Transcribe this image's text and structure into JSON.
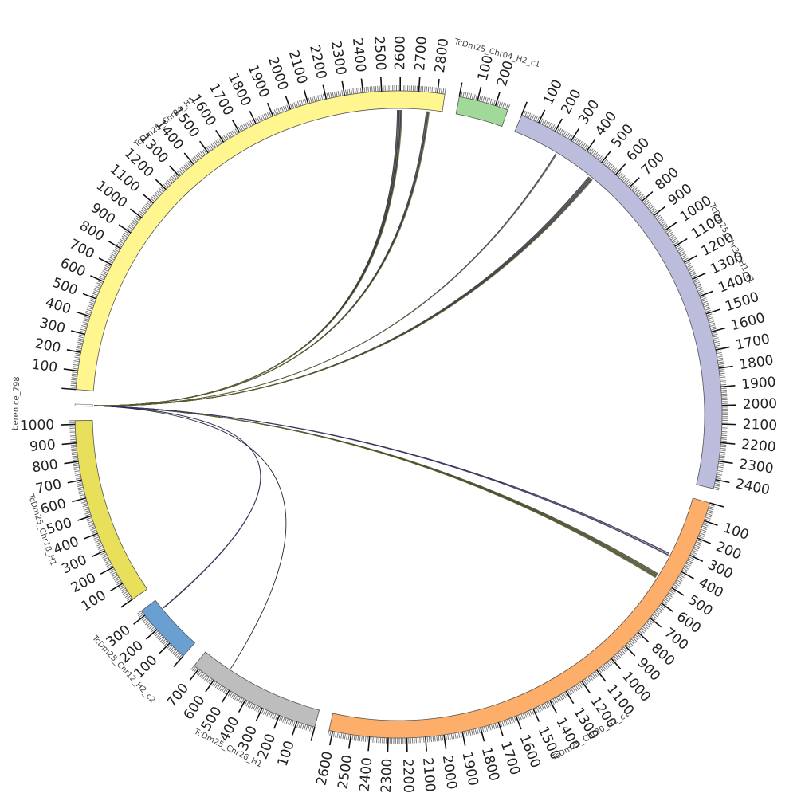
{
  "figure": {
    "type": "circos"
  },
  "sequences": [
    {
      "name": "berenice_798",
      "length": 10,
      "color": "#ffffff",
      "tick_labels": []
    },
    {
      "name": "TcDm25_Chr04_H1",
      "length": 2840,
      "color": "#fff68f",
      "tick_labels": [
        "100",
        "200",
        "300",
        "400",
        "500",
        "600",
        "700",
        "800",
        "900",
        "1000",
        "1100",
        "1200",
        "1300",
        "1400",
        "1500",
        "1600",
        "1700",
        "1800",
        "1900",
        "2000",
        "2100",
        "2200",
        "2300",
        "2400",
        "2500",
        "2600",
        "2700",
        "2800"
      ]
    },
    {
      "name": "TcDm25_Chr04_H2_c1",
      "length": 270,
      "color": "#a1d99b",
      "tick_labels": [
        "100",
        "200"
      ]
    },
    {
      "name": "TcDm25_Chr30_H1_c1",
      "length": 2450,
      "color": "#bcbddc",
      "tick_labels": [
        "100",
        "200",
        "300",
        "400",
        "500",
        "600",
        "700",
        "800",
        "900",
        "1000",
        "1100",
        "1200",
        "1300",
        "1400",
        "1500",
        "1600",
        "1700",
        "1800",
        "1900",
        "2000",
        "2100",
        "2200",
        "2300",
        "2400"
      ]
    },
    {
      "name": "TcDm25_Chr30_H2_c1",
      "length": 2620,
      "color": "#fdae6b",
      "tick_labels": [
        "100",
        "200",
        "300",
        "400",
        "500",
        "600",
        "700",
        "800",
        "900",
        "1000",
        "1100",
        "1200",
        "1300",
        "1400",
        "1500",
        "1600",
        "1700",
        "1800",
        "1900",
        "2000",
        "2100",
        "2200",
        "2300",
        "2400",
        "2500",
        "2600"
      ]
    },
    {
      "name": "TcDm25_Chr26_H1",
      "length": 730,
      "color": "#bdbdbd",
      "tick_labels": [
        "100",
        "200",
        "300",
        "400",
        "500",
        "600",
        "700"
      ]
    },
    {
      "name": "TcDm25_Chr12_H2_c2",
      "length": 330,
      "color": "#6a9fd1",
      "tick_labels": [
        "100",
        "200",
        "300"
      ]
    },
    {
      "name": "TcDm25_Chr18_H1",
      "length": 1020,
      "color": "#e8e05a",
      "tick_labels": [
        "100",
        "200",
        "300",
        "400",
        "500",
        "600",
        "700",
        "800",
        "900",
        "1000"
      ]
    }
  ],
  "links": [
    {
      "from": "berenice_798",
      "to": "TcDm25_Chr04_H1",
      "positions": [
        2590,
        2600,
        2610
      ],
      "count": 10,
      "color": "#1a1a1a"
    },
    {
      "from": "berenice_798",
      "to": "TcDm25_Chr04_H1",
      "positions": [
        2755,
        2765
      ],
      "count": 6,
      "color": "#1a1a1a"
    },
    {
      "from": "berenice_798",
      "to": "TcDm25_Chr30_H1_c1",
      "positions": [
        270
      ],
      "count": 3,
      "color": "#20205a"
    },
    {
      "from": "berenice_798",
      "to": "TcDm25_Chr30_H1_c1",
      "positions": [
        500,
        510,
        520
      ],
      "count": 10,
      "color": "#2a2a2a"
    },
    {
      "from": "berenice_798",
      "to": "TcDm25_Chr30_H2_c1",
      "positions": [
        480,
        490,
        500
      ],
      "count": 10,
      "color": "#4a4a00"
    },
    {
      "from": "berenice_798",
      "to": "TcDm25_Chr30_H2_c1",
      "positions": [
        345,
        355
      ],
      "count": 4,
      "color": "#3a1a1a"
    },
    {
      "from": "berenice_798",
      "to": "TcDm25_Chr26_H1",
      "positions": [
        560
      ],
      "count": 1,
      "color": "#000000"
    },
    {
      "from": "berenice_798",
      "to": "TcDm25_Chr12_H2_c2",
      "positions": [
        270
      ],
      "count": 2,
      "color": "#000000"
    }
  ]
}
